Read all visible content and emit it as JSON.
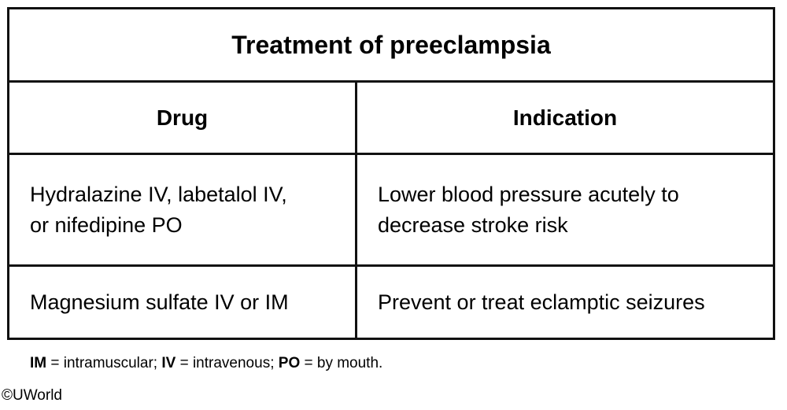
{
  "table": {
    "title": "Treatment of preeclampsia",
    "headers": [
      "Drug",
      "Indication"
    ],
    "rows": [
      {
        "drug_line1": "Hydralazine IV, labetalol IV,",
        "drug_line2": "or nifedipine PO",
        "indication_line1": "Lower blood pressure acutely to",
        "indication_line2": "decrease stroke risk"
      },
      {
        "drug_line1": "Magnesium sulfate IV or IM",
        "indication_line1": "Prevent or treat eclamptic seizures"
      }
    ]
  },
  "footnote": {
    "items": [
      {
        "abbr": "IM",
        "text": " = intramuscular; "
      },
      {
        "abbr": "IV",
        "text": " = intravenous; "
      },
      {
        "abbr": "PO",
        "text": " = by mouth."
      }
    ]
  },
  "copyright": "©UWorld"
}
